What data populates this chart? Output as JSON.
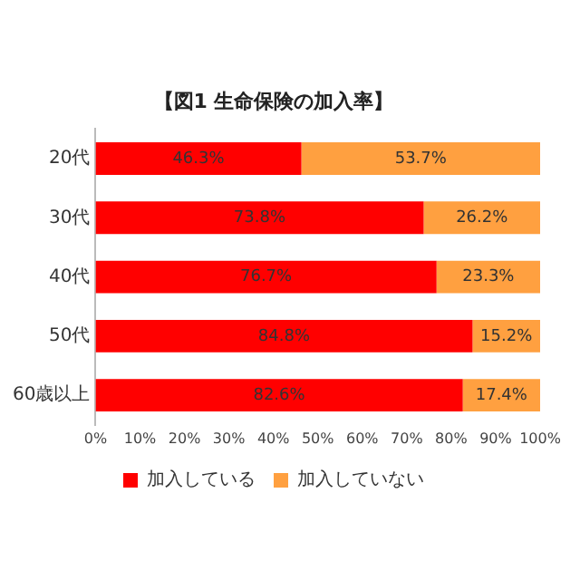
{
  "chart_data": {
    "type": "bar",
    "orientation": "horizontal",
    "stacked": true,
    "title": "【図1 生命保険の加入率】",
    "categories": [
      "20代",
      "30代",
      "40代",
      "50代",
      "60歳以上"
    ],
    "series": [
      {
        "name": "加入している",
        "color": "#ff0000",
        "values": [
          46.3,
          73.8,
          76.7,
          84.8,
          82.6
        ],
        "value_labels": [
          "46.3%",
          "73.8%",
          "76.7%",
          "84.8%",
          "82.6%"
        ]
      },
      {
        "name": "加入していない",
        "color": "#ffa040",
        "values": [
          53.7,
          26.2,
          23.3,
          15.2,
          17.4
        ],
        "value_labels": [
          "53.7%",
          "26.2%",
          "23.3%",
          "15.2%",
          "17.4%"
        ]
      }
    ],
    "xlim": [
      0,
      100
    ],
    "xticks": [
      {
        "value": 0,
        "label": "0%"
      },
      {
        "value": 10,
        "label": "10%"
      },
      {
        "value": 20,
        "label": "20%"
      },
      {
        "value": 30,
        "label": "30%"
      },
      {
        "value": 40,
        "label": "40%"
      },
      {
        "value": 50,
        "label": "50%"
      },
      {
        "value": 60,
        "label": "60%"
      },
      {
        "value": 70,
        "label": "70%"
      },
      {
        "value": 80,
        "label": "80%"
      },
      {
        "value": 90,
        "label": "90%"
      },
      {
        "value": 100,
        "label": "100%"
      }
    ],
    "grid": false,
    "legend": "bottom"
  }
}
